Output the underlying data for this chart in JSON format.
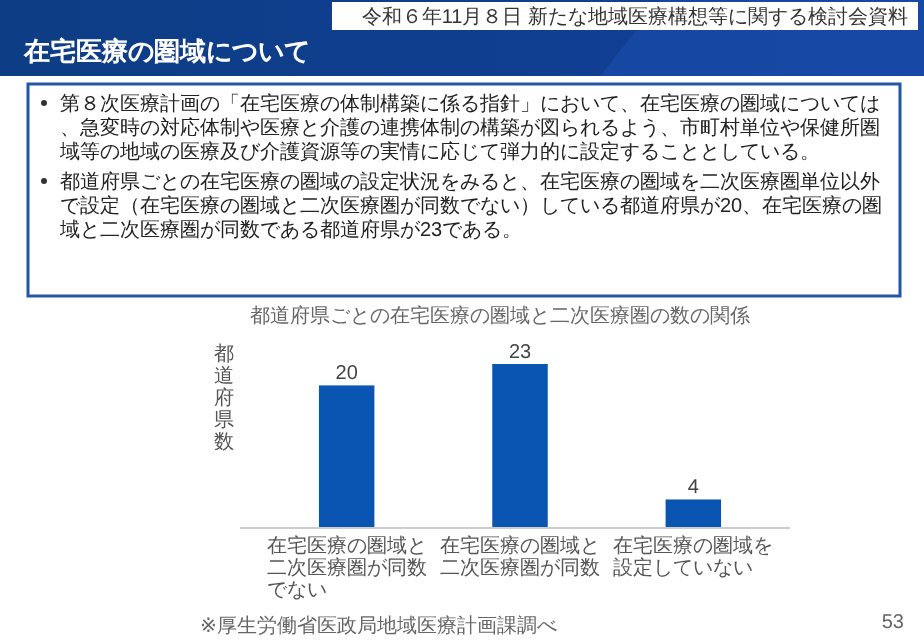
{
  "chart_data": {
    "type": "bar",
    "title": "在宅医療の圏域について",
    "subtitle": "都道府県ごとの在宅医療の圏域と二次医療圏の数の関係",
    "ylabel": "都道府県数",
    "categories": [
      "在宅医療の圏域と二次医療圏が同数でない",
      "在宅医療の圏域と二次医療圏が同数",
      "在宅医療の圏域を設定していない"
    ],
    "values": [
      20,
      23,
      4
    ],
    "color": "#0a55b2",
    "data_labels": true,
    "annotations": [
      "令和６年11月８日 新たな地域医療構想等に関する検討会資料",
      "第８次医療計画の「在宅医療の体制構築に係る指針」において、在宅医療の圏域については、急変時の対応体制や医療と介護の連携体制の構築が図られるよう、市町村単位や保健所圏域等の地域の医療及び介護資源等の実情に応じて弾力的に設定することとしている。",
      "都道府県ごとの在宅医療の圏域の設定状況をみると、在宅医療の圏域を二次医療圏単位以外で設定（在宅医療の圏域と二次医療圏が同数でない）している都道府県が20、在宅医療の圏域と二次医療圏が同数である都道府県が23である。",
      "※厚生労働省医政局地域医療計画課調べ",
      "53"
    ]
  }
}
